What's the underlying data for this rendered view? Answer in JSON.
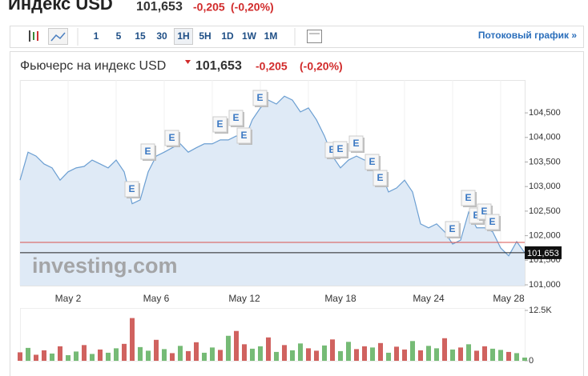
{
  "header": {
    "title": "Индекс USD",
    "price": "101,653",
    "change": "-0,205",
    "change_pct": "(-0,20%)"
  },
  "toolbar": {
    "intervals": [
      "1",
      "5",
      "15",
      "30",
      "1H",
      "5H",
      "1D",
      "1W",
      "1M"
    ],
    "active": "1H",
    "stream_link": "Потоковый график »"
  },
  "panel": {
    "title": "Фьючерс на индекс USD",
    "price": "101,653",
    "change": "-0,205",
    "change_pct": "(-0,20%)",
    "watermark": "investing.com"
  },
  "chart_data": [
    {
      "type": "line",
      "color": "#6c9fd2",
      "area_color": "#dfeaf6",
      "categories": [
        null,
        null,
        null,
        null,
        null,
        null,
        "May 2",
        null,
        null,
        null,
        null,
        null,
        null,
        null,
        null,
        null,
        null,
        "May 6",
        null,
        null,
        null,
        null,
        null,
        null,
        null,
        null,
        null,
        null,
        "May 12",
        null,
        null,
        null,
        null,
        null,
        null,
        null,
        null,
        null,
        null,
        null,
        "May 18",
        null,
        null,
        null,
        null,
        null,
        null,
        null,
        null,
        null,
        null,
        "May 24",
        null,
        null,
        null,
        null,
        null,
        null,
        null,
        null,
        null,
        "May 28",
        null,
        null
      ],
      "values": [
        103.13,
        103.7,
        103.62,
        103.46,
        103.38,
        103.13,
        103.3,
        103.38,
        103.41,
        103.54,
        103.46,
        103.38,
        103.54,
        103.3,
        102.65,
        102.73,
        103.3,
        103.62,
        103.7,
        103.79,
        103.87,
        103.7,
        103.79,
        103.87,
        103.87,
        103.95,
        103.95,
        104.03,
        103.95,
        104.36,
        104.6,
        104.76,
        104.68,
        104.84,
        104.76,
        104.52,
        104.6,
        104.36,
        104.03,
        103.62,
        103.38,
        103.54,
        103.62,
        103.54,
        103.54,
        103.3,
        102.89,
        102.97,
        103.13,
        102.89,
        102.24,
        102.16,
        102.24,
        102.08,
        101.83,
        101.91,
        102.48,
        102.16,
        102.16,
        102.08,
        101.75,
        101.59,
        101.88,
        101.653
      ],
      "event_label": "E",
      "event_values": [
        null,
        null,
        null,
        null,
        null,
        null,
        null,
        null,
        null,
        null,
        null,
        null,
        null,
        null,
        102.938,
        null,
        103.704,
        null,
        null,
        103.98,
        null,
        null,
        null,
        null,
        null,
        104.257,
        null,
        104.388,
        104.029,
        null,
        104.795,
        null,
        null,
        null,
        null,
        null,
        null,
        null,
        null,
        103.736,
        103.752,
        null,
        103.866,
        null,
        103.492,
        103.166,
        null,
        null,
        null,
        null,
        null,
        null,
        null,
        null,
        102.124,
        null,
        102.759,
        102.401,
        102.482,
        102.27,
        null,
        null,
        null,
        null
      ],
      "ylim": [
        100.984,
        105.169
      ],
      "yticks": [
        {
          "value": 101,
          "label": "101,000"
        },
        {
          "value": 101.5,
          "label": "101,500"
        },
        {
          "value": 102,
          "label": "102,000"
        },
        {
          "value": 102.5,
          "label": "102,500"
        },
        {
          "value": 103,
          "label": "103,000"
        },
        {
          "value": 103.5,
          "label": "103,500"
        },
        {
          "value": 104,
          "label": "104,000"
        },
        {
          "value": 104.5,
          "label": "104,500"
        }
      ],
      "reference_line": {
        "value": 101.863,
        "color": "#d9534f"
      },
      "last": {
        "value": 101.653,
        "label": "101,653"
      }
    },
    {
      "type": "bar",
      "values": [
        2100,
        3200,
        1500,
        2600,
        1800,
        3600,
        1400,
        2300,
        3900,
        1700,
        2800,
        2000,
        3100,
        4200,
        10600,
        3400,
        2500,
        5200,
        2900,
        1900,
        3700,
        2400,
        4600,
        2000,
        3300,
        2700,
        6200,
        7400,
        4100,
        3000,
        3600,
        5800,
        2200,
        3900,
        2600,
        4300,
        3100,
        2500,
        3800,
        5300,
        2400,
        4700,
        2900,
        3600,
        3300,
        4400,
        2000,
        3500,
        2800,
        4900,
        2600,
        3700,
        3100,
        5600,
        2800,
        3300,
        4100,
        2500,
        3600,
        3000,
        2700,
        2200,
        1900,
        800
      ],
      "colors": [
        "#d0625f",
        "#76bb76",
        "#d0625f",
        "#d0625f",
        "#76bb76",
        "#d0625f",
        "#76bb76",
        "#76bb76",
        "#d0625f",
        "#76bb76",
        "#d0625f",
        "#76bb76",
        "#76bb76",
        "#d0625f",
        "#d0625f",
        "#76bb76",
        "#76bb76",
        "#d0625f",
        "#76bb76",
        "#d0625f",
        "#76bb76",
        "#d0625f",
        "#d0625f",
        "#76bb76",
        "#76bb76",
        "#d0625f",
        "#76bb76",
        "#d0625f",
        "#d0625f",
        "#76bb76",
        "#76bb76",
        "#d0625f",
        "#76bb76",
        "#d0625f",
        "#76bb76",
        "#76bb76",
        "#d0625f",
        "#d0625f",
        "#76bb76",
        "#d0625f",
        "#76bb76",
        "#76bb76",
        "#d0625f",
        "#d0625f",
        "#76bb76",
        "#d0625f",
        "#76bb76",
        "#d0625f",
        "#d0625f",
        "#76bb76",
        "#d0625f",
        "#76bb76",
        "#76bb76",
        "#d0625f",
        "#76bb76",
        "#d0625f",
        "#76bb76",
        "#d0625f",
        "#d0625f",
        "#76bb76",
        "#76bb76",
        "#d0625f",
        "#76bb76",
        "#76bb76"
      ],
      "ylim": [
        0,
        12500
      ],
      "yticks": [
        0,
        {
          "value": 12500,
          "label": "12.5K"
        }
      ]
    }
  ]
}
